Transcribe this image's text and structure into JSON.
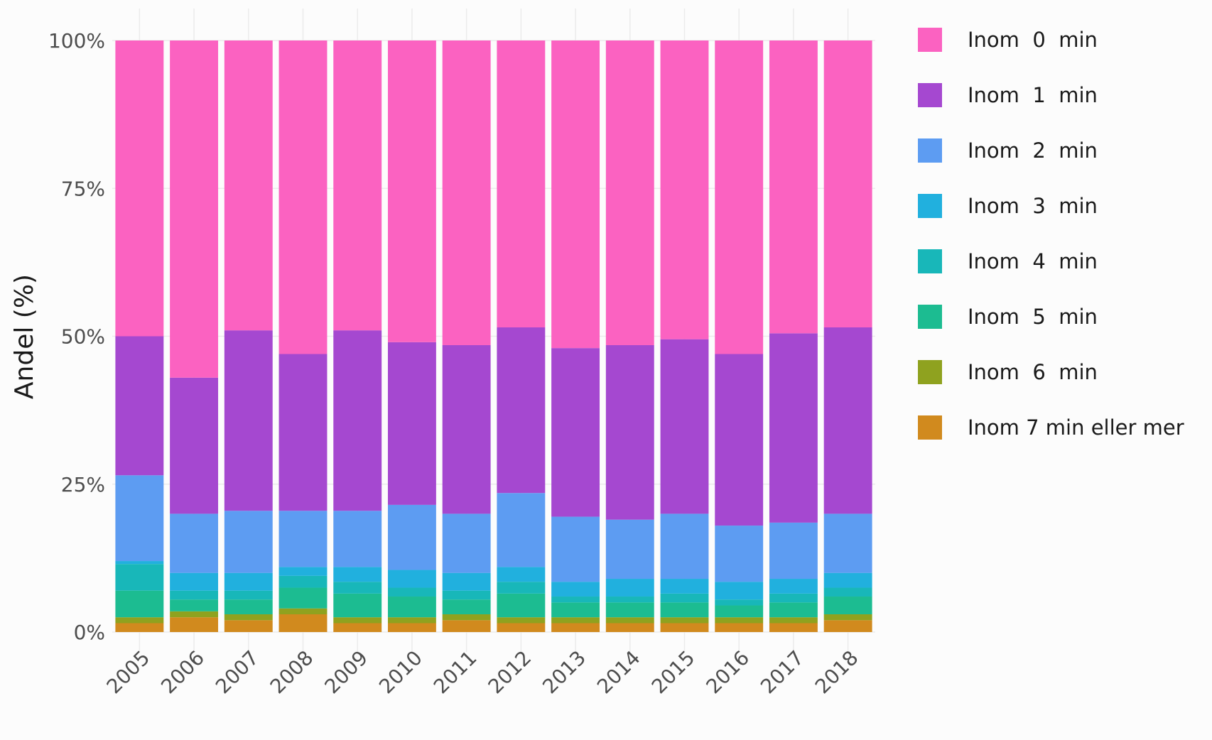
{
  "chart_data": {
    "type": "bar",
    "stacked": true,
    "normalized": true,
    "categories": [
      "2005",
      "2006",
      "2007",
      "2008",
      "2009",
      "2010",
      "2011",
      "2012",
      "2013",
      "2014",
      "2015",
      "2016",
      "2017",
      "2018"
    ],
    "ylabel": "Andel (%)",
    "xlabel": "",
    "ylim": [
      0,
      100
    ],
    "y_ticks": [
      "0%",
      "25%",
      "50%",
      "75%",
      "100%"
    ],
    "y_tick_values": [
      0,
      25,
      50,
      75,
      100
    ],
    "grid": true,
    "legend_position": "right",
    "series": [
      {
        "name": "Inom 7 min eller mer",
        "color": "#d18a1e",
        "values": [
          1.5,
          2.5,
          2.0,
          3.0,
          1.5,
          1.5,
          2.0,
          1.5,
          1.5,
          1.5,
          1.5,
          1.5,
          1.5,
          2.0
        ]
      },
      {
        "name": "Inom  6  min",
        "color": "#8fa21f",
        "values": [
          1.0,
          1.0,
          1.0,
          1.0,
          1.0,
          1.0,
          1.0,
          1.0,
          1.0,
          1.0,
          1.0,
          1.0,
          1.0,
          1.0
        ]
      },
      {
        "name": "Inom  5  min",
        "color": "#1cbc91",
        "values": [
          4.5,
          2.0,
          2.5,
          3.5,
          4.0,
          3.5,
          2.5,
          4.0,
          2.5,
          2.5,
          2.5,
          2.0,
          2.5,
          3.0
        ]
      },
      {
        "name": "Inom  4  min",
        "color": "#18b7b9",
        "values": [
          4.5,
          1.5,
          1.5,
          2.0,
          2.0,
          1.5,
          1.5,
          2.0,
          1.0,
          1.0,
          1.5,
          1.0,
          1.5,
          1.5
        ]
      },
      {
        "name": "Inom  3  min",
        "color": "#21b0de",
        "values": [
          0.5,
          3.0,
          3.0,
          1.5,
          2.5,
          3.0,
          3.0,
          2.5,
          2.5,
          3.0,
          2.5,
          3.0,
          2.5,
          2.5
        ]
      },
      {
        "name": "Inom  2  min",
        "color": "#5d9cf2",
        "values": [
          14.5,
          10.0,
          10.5,
          9.5,
          9.5,
          11.0,
          10.0,
          12.5,
          11.0,
          10.0,
          11.0,
          9.5,
          9.5,
          10.0
        ]
      },
      {
        "name": "Inom  1  min",
        "color": "#a548d0",
        "values": [
          23.5,
          23.0,
          30.5,
          26.5,
          30.5,
          27.5,
          28.5,
          28.0,
          28.5,
          29.5,
          29.5,
          29.0,
          32.0,
          31.5
        ]
      },
      {
        "name": "Inom  0  min",
        "color": "#fb62c1",
        "values": [
          50.0,
          57.0,
          49.0,
          53.0,
          49.0,
          51.0,
          51.5,
          48.5,
          52.0,
          51.5,
          50.5,
          53.0,
          49.5,
          48.5
        ]
      }
    ],
    "legend_order": [
      "Inom  0  min",
      "Inom  1  min",
      "Inom  2  min",
      "Inom  3  min",
      "Inom  4  min",
      "Inom  5  min",
      "Inom  6  min",
      "Inom 7 min eller mer"
    ]
  }
}
